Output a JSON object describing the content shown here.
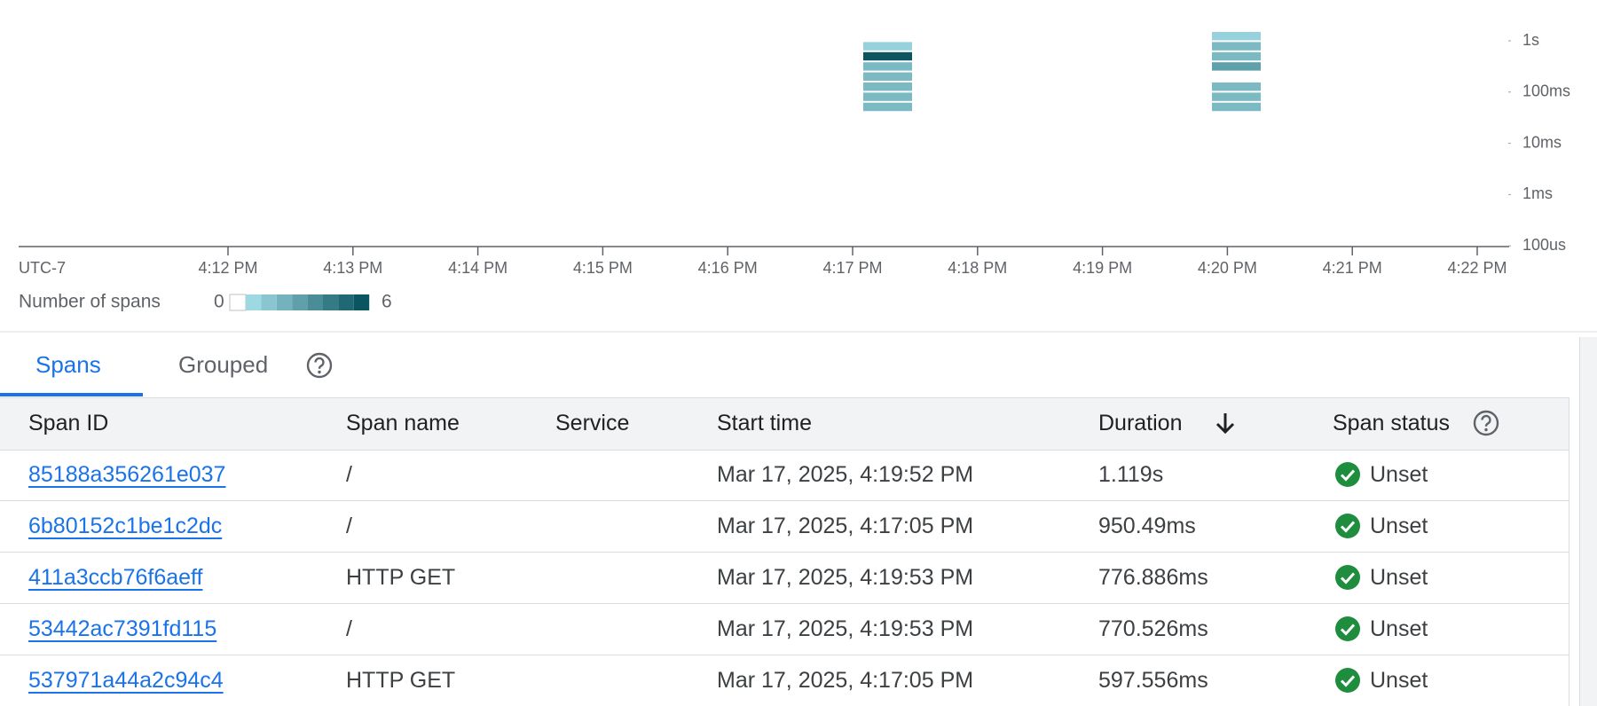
{
  "timeline": {
    "timezone": "UTC-7",
    "x_ticks": [
      "4:12 PM",
      "4:13 PM",
      "4:14 PM",
      "4:15 PM",
      "4:16 PM",
      "4:17 PM",
      "4:18 PM",
      "4:19 PM",
      "4:20 PM",
      "4:21 PM",
      "4:22 PM"
    ],
    "y_ticks": [
      "1s",
      "100ms",
      "10ms",
      "1ms",
      "100us"
    ],
    "columns": [
      {
        "counts": [
          null,
          1,
          6,
          2,
          2,
          2,
          2,
          2
        ]
      },
      {
        "counts": [
          1,
          2,
          2,
          3,
          null,
          2,
          2,
          2
        ]
      }
    ],
    "legend": {
      "label": "Number of spans",
      "min": 0,
      "max": 6
    }
  },
  "tabs": [
    "Spans",
    "Grouped"
  ],
  "table": {
    "columns": [
      "Span ID",
      "Span name",
      "Service",
      "Start time",
      "Duration",
      "Span status"
    ],
    "rows": [
      {
        "id": "85188a356261e037",
        "name": "/",
        "start": "Mar 17, 2025, 4:19:52 PM",
        "duration": "1.119s",
        "status": "Unset"
      },
      {
        "id": "6b80152c1be1c2dc",
        "name": "/",
        "start": "Mar 17, 2025, 4:17:05 PM",
        "duration": "950.49ms",
        "status": "Unset"
      },
      {
        "id": "411a3ccb76f6aeff",
        "name": "HTTP GET",
        "start": "Mar 17, 2025, 4:19:53 PM",
        "duration": "776.886ms",
        "status": "Unset"
      },
      {
        "id": "53442ac7391fd115",
        "name": "/",
        "start": "Mar 17, 2025, 4:19:53 PM",
        "duration": "770.526ms",
        "status": "Unset"
      },
      {
        "id": "537971a44a2c94c4",
        "name": "HTTP GET",
        "start": "Mar 17, 2025, 4:17:05 PM",
        "duration": "597.556ms",
        "status": "Unset"
      }
    ]
  }
}
